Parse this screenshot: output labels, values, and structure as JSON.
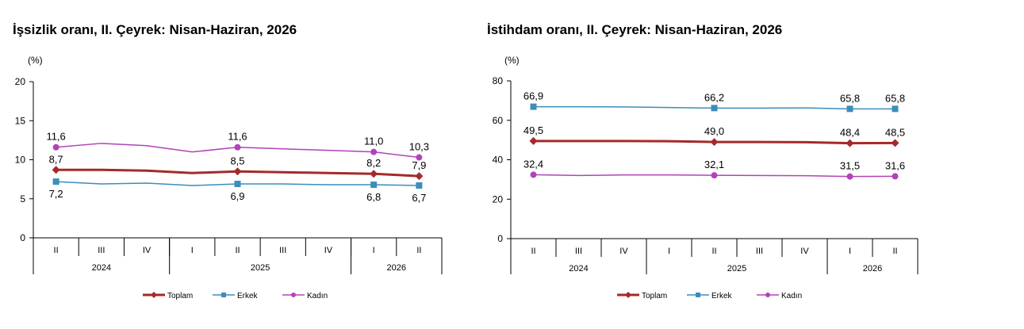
{
  "colors": {
    "toplam": "#A52A2A",
    "erkek": "#3C8DBC",
    "kadin": "#B043B9",
    "axis": "#000000"
  },
  "chart_data": [
    {
      "type": "line",
      "title": "İşsizlik oranı, II. Çeyrek: Nisan-Haziran, 2026",
      "ylabel": "(%)",
      "ylim": [
        0,
        20
      ],
      "yticks": [
        "0",
        "5",
        "10",
        "15",
        "20"
      ],
      "categories": [
        "II",
        "III",
        "IV",
        "I",
        "II",
        "III",
        "IV",
        "I",
        "II"
      ],
      "year_groups": [
        {
          "label": "2024",
          "span": 3
        },
        {
          "label": "2025",
          "span": 4
        },
        {
          "label": "2026",
          "span": 2
        }
      ],
      "grid": false,
      "legend_position": "bottom",
      "series": [
        {
          "name": "Toplam",
          "color_key": "toplam",
          "values": [
            8.7,
            8.7,
            8.6,
            8.3,
            8.5,
            8.4,
            8.3,
            8.2,
            7.9
          ],
          "labels": {
            "0": "8,7",
            "4": "8,5",
            "7": "8,2",
            "8": "7,9"
          },
          "label_pos": "above",
          "marker": "diamond",
          "width": 3
        },
        {
          "name": "Erkek",
          "color_key": "erkek",
          "values": [
            7.2,
            6.9,
            7.0,
            6.7,
            6.9,
            6.9,
            6.8,
            6.8,
            6.7
          ],
          "labels": {
            "0": "7,2",
            "4": "6,9",
            "7": "6,8",
            "8": "6,7"
          },
          "label_pos": "below",
          "marker": "square",
          "width": 1.5
        },
        {
          "name": "Kadın",
          "color_key": "kadin",
          "values": [
            11.6,
            12.1,
            11.8,
            11.0,
            11.6,
            11.4,
            11.2,
            11.0,
            10.3
          ],
          "labels": {
            "0": "11,6",
            "4": "11,6",
            "7": "11,0",
            "8": "10,3"
          },
          "label_pos": "above",
          "marker": "circle",
          "width": 1.5
        }
      ]
    },
    {
      "type": "line",
      "title": "İstihdam oranı, II. Çeyrek: Nisan-Haziran, 2026",
      "ylabel": "(%)",
      "ylim": [
        0,
        80
      ],
      "yticks": [
        "0",
        "20",
        "40",
        "60",
        "80"
      ],
      "categories": [
        "II",
        "III",
        "IV",
        "I",
        "II",
        "III",
        "IV",
        "I",
        "II"
      ],
      "year_groups": [
        {
          "label": "2024",
          "span": 3
        },
        {
          "label": "2025",
          "span": 4
        },
        {
          "label": "2026",
          "span": 2
        }
      ],
      "grid": false,
      "legend_position": "bottom",
      "series": [
        {
          "name": "Toplam",
          "color_key": "toplam",
          "values": [
            49.5,
            49.5,
            49.5,
            49.4,
            49.0,
            49.0,
            48.9,
            48.4,
            48.5
          ],
          "labels": {
            "0": "49,5",
            "4": "49,0",
            "7": "48,4",
            "8": "48,5"
          },
          "label_pos": "above",
          "marker": "diamond",
          "width": 3
        },
        {
          "name": "Erkek",
          "color_key": "erkek",
          "values": [
            66.9,
            66.9,
            66.8,
            66.5,
            66.2,
            66.2,
            66.3,
            65.8,
            65.8
          ],
          "labels": {
            "0": "66,9",
            "4": "66,2",
            "7": "65,8",
            "8": "65,8"
          },
          "label_pos": "above",
          "marker": "square",
          "width": 1.5
        },
        {
          "name": "Kadın",
          "color_key": "kadin",
          "values": [
            32.4,
            32.0,
            32.3,
            32.3,
            32.1,
            32.0,
            31.9,
            31.5,
            31.6
          ],
          "labels": {
            "0": "32,4",
            "4": "32,1",
            "7": "31,5",
            "8": "31,6"
          },
          "label_pos": "above",
          "marker": "circle",
          "width": 1.5
        }
      ]
    }
  ]
}
